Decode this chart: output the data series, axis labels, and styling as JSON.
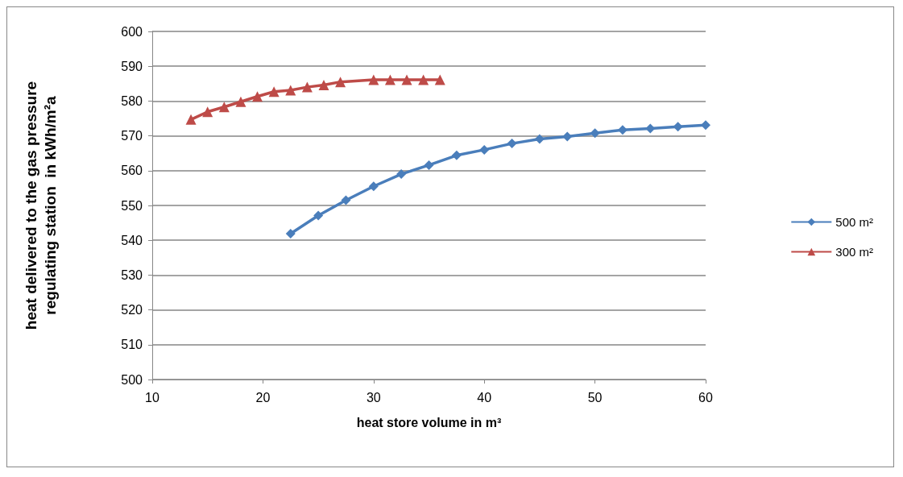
{
  "chart_data": {
    "type": "line",
    "xlabel": "heat store volume in m³",
    "ylabel": "heat delivered to the gas pressure regulating station  in kWh/m²a",
    "xlim": [
      10,
      60
    ],
    "xticks": [
      10,
      20,
      30,
      40,
      50,
      60
    ],
    "ylim": [
      500,
      600
    ],
    "yticks": [
      500,
      510,
      520,
      530,
      540,
      550,
      560,
      570,
      580,
      590,
      600
    ],
    "grid": "y",
    "legend": "right",
    "series": [
      {
        "name": "500 m²",
        "color": "#4a7ebb",
        "marker": "diamond",
        "x": [
          22.5,
          25,
          27.5,
          30,
          32.5,
          35,
          37.5,
          40,
          42.5,
          45,
          47.5,
          50,
          52.5,
          55,
          57.5,
          60
        ],
        "values": [
          541.9,
          547.1,
          551.5,
          555.5,
          559,
          561.6,
          564.4,
          566,
          567.8,
          569.1,
          569.8,
          570.8,
          571.7,
          572.1,
          572.6,
          573.1
        ]
      },
      {
        "name": "300 m²",
        "color": "#be4b48",
        "marker": "triangle",
        "x": [
          13.5,
          15,
          16.5,
          18,
          19.5,
          21,
          22.5,
          24,
          25.5,
          27,
          30,
          31.5,
          33,
          34.5,
          36
        ],
        "values": [
          574.7,
          576.9,
          578.3,
          579.8,
          581.3,
          582.7,
          583.1,
          584,
          584.6,
          585.5,
          586.1,
          586.1,
          586.1,
          586.1,
          586.1
        ]
      }
    ]
  }
}
